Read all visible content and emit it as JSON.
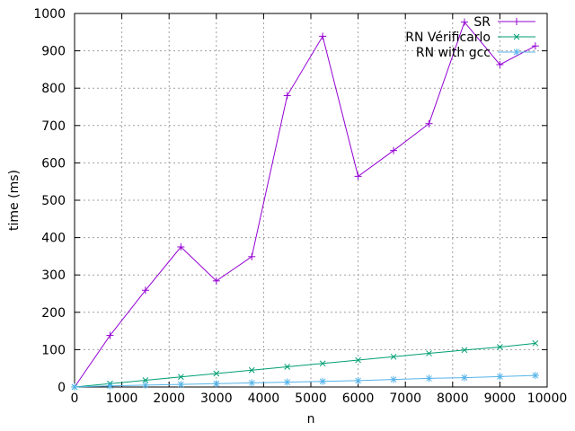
{
  "chart_data": {
    "type": "line",
    "xlabel": "n",
    "ylabel": "time (ms)",
    "xlim": [
      0,
      10000
    ],
    "ylim": [
      0,
      1000
    ],
    "xticks": [
      0,
      1000,
      2000,
      3000,
      4000,
      5000,
      6000,
      7000,
      8000,
      9000,
      10000
    ],
    "yticks": [
      0,
      100,
      200,
      300,
      400,
      500,
      600,
      700,
      800,
      900,
      1000
    ],
    "xtick_labels": [
      "0",
      "1000",
      "2000",
      "3000",
      "4000",
      "5000",
      "6000",
      "7000",
      "8000",
      "9000",
      "10000"
    ],
    "ytick_labels": [
      "0",
      "100",
      "200",
      "300",
      "400",
      "500",
      "600",
      "700",
      "800",
      "900",
      "1000"
    ],
    "grid": true,
    "legend_position": "top-right",
    "series": [
      {
        "name": "SR",
        "color": "#9400d3",
        "marker": "plus",
        "x": [
          0,
          750,
          1500,
          2250,
          3000,
          3750,
          4500,
          5250,
          6000,
          6750,
          7500,
          8250,
          9000,
          9750
        ],
        "values": [
          0,
          138,
          259,
          375,
          284,
          349,
          780,
          939,
          564,
          633,
          705,
          977,
          863,
          913
        ]
      },
      {
        "name": "RN Vérificarlo",
        "color": "#009e73",
        "marker": "cross",
        "x": [
          0,
          750,
          1500,
          2250,
          3000,
          3750,
          4500,
          5250,
          6000,
          6750,
          7500,
          8250,
          9000,
          9750
        ],
        "values": [
          0,
          9,
          18,
          27,
          36,
          45,
          54,
          63,
          72,
          81,
          90,
          99,
          107,
          117
        ]
      },
      {
        "name": "RN with gcc",
        "color": "#56b4e9",
        "marker": "asterisk",
        "x": [
          0,
          750,
          1500,
          2250,
          3000,
          3750,
          4500,
          5250,
          6000,
          6750,
          7500,
          8250,
          9000,
          9750
        ],
        "values": [
          0,
          3,
          5,
          7,
          9,
          11,
          13,
          15,
          17,
          20,
          23,
          25,
          28,
          31
        ]
      }
    ]
  }
}
